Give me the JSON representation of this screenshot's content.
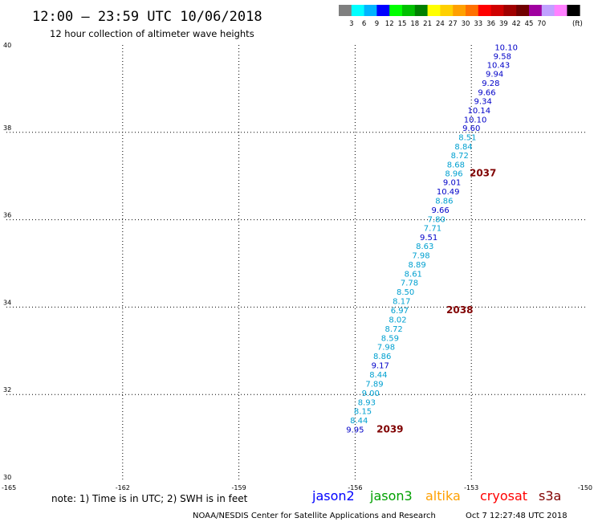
{
  "header": {
    "title": "12:00 – 23:59 UTC 10/06/2018",
    "subtitle": "12 hour collection of altimeter wave heights"
  },
  "colorbar": {
    "unit": "(ft)",
    "colors": [
      "#7f7f7f",
      "#00ffff",
      "#00b4ff",
      "#0000ff",
      "#00ff00",
      "#00c000",
      "#008000",
      "#ffff00",
      "#ffd000",
      "#ffa000",
      "#ff7000",
      "#ff0000",
      "#d00000",
      "#a00000",
      "#700000",
      "#a000a0",
      "#c0a0ff",
      "#ff80ff",
      "#000000"
    ],
    "labels": [
      "3",
      "6",
      "9",
      "12",
      "15",
      "18",
      "21",
      "24",
      "27",
      "30",
      "33",
      "36",
      "39",
      "42",
      "45",
      "70"
    ]
  },
  "chart_data": {
    "type": "scatter",
    "title": "12:00 – 23:59 UTC 10/06/2018",
    "subtitle": "12 hour collection of altimeter wave heights",
    "xlim": [
      -165,
      -150
    ],
    "ylim": [
      30,
      40
    ],
    "grid": true,
    "x_ticks": [
      "-165",
      "-162",
      "-159",
      "-156",
      "-153",
      "-150"
    ],
    "y_ticks": [
      "30",
      "32",
      "34",
      "36",
      "38",
      "40"
    ],
    "points": [
      {
        "lon": -152.1,
        "lat": 39.88,
        "label": "10.10",
        "color": "#0000c8"
      },
      {
        "lon": -152.2,
        "lat": 39.68,
        "label": "9.58",
        "color": "#0000c8"
      },
      {
        "lon": -152.3,
        "lat": 39.48,
        "label": "10.43",
        "color": "#0000c8"
      },
      {
        "lon": -152.4,
        "lat": 39.27,
        "label": "9.94",
        "color": "#0000c8"
      },
      {
        "lon": -152.5,
        "lat": 39.06,
        "label": "9.28",
        "color": "#0000c8"
      },
      {
        "lon": -152.6,
        "lat": 38.85,
        "label": "9.66",
        "color": "#0000c8"
      },
      {
        "lon": -152.7,
        "lat": 38.65,
        "label": "9.34",
        "color": "#0000c8"
      },
      {
        "lon": -152.8,
        "lat": 38.44,
        "label": "10.14",
        "color": "#0000c8"
      },
      {
        "lon": -152.9,
        "lat": 38.23,
        "label": "10.10",
        "color": "#0000c8"
      },
      {
        "lon": -153.0,
        "lat": 38.03,
        "label": "9.60",
        "color": "#0000c8"
      },
      {
        "lon": -153.1,
        "lat": 37.82,
        "label": "8.51",
        "color": "#00a0d0"
      },
      {
        "lon": -153.2,
        "lat": 37.61,
        "label": "8.84",
        "color": "#00a0d0"
      },
      {
        "lon": -153.3,
        "lat": 37.41,
        "label": "8.72",
        "color": "#00a0d0"
      },
      {
        "lon": -153.4,
        "lat": 37.2,
        "label": "8.68",
        "color": "#00a0d0"
      },
      {
        "lon": -153.45,
        "lat": 36.99,
        "label": "8.96",
        "color": "#00a0d0"
      },
      {
        "lon": -153.5,
        "lat": 36.79,
        "label": "9.01",
        "color": "#0000c8"
      },
      {
        "lon": -153.6,
        "lat": 36.58,
        "label": "10.49",
        "color": "#0000c8"
      },
      {
        "lon": -153.7,
        "lat": 36.37,
        "label": "8.86",
        "color": "#00a0d0"
      },
      {
        "lon": -153.8,
        "lat": 36.16,
        "label": "9.66",
        "color": "#0000c8"
      },
      {
        "lon": -153.9,
        "lat": 35.95,
        "label": "7.80",
        "color": "#00a0d0"
      },
      {
        "lon": -154.0,
        "lat": 35.74,
        "label": "7.71",
        "color": "#00a0d0"
      },
      {
        "lon": -154.1,
        "lat": 35.53,
        "label": "9.51",
        "color": "#0000c8"
      },
      {
        "lon": -154.2,
        "lat": 35.33,
        "label": "8.63",
        "color": "#00a0d0"
      },
      {
        "lon": -154.3,
        "lat": 35.12,
        "label": "7.98",
        "color": "#00a0d0"
      },
      {
        "lon": -154.4,
        "lat": 34.91,
        "label": "8.89",
        "color": "#00a0d0"
      },
      {
        "lon": -154.5,
        "lat": 34.7,
        "label": "8.61",
        "color": "#00a0d0"
      },
      {
        "lon": -154.6,
        "lat": 34.49,
        "label": "7.78",
        "color": "#00a0d0"
      },
      {
        "lon": -154.7,
        "lat": 34.28,
        "label": "8.50",
        "color": "#00a0d0"
      },
      {
        "lon": -154.8,
        "lat": 34.07,
        "label": "8.17",
        "color": "#00a0d0"
      },
      {
        "lon": -154.85,
        "lat": 33.86,
        "label": "6.97",
        "color": "#00a0d0"
      },
      {
        "lon": -154.9,
        "lat": 33.65,
        "label": "8.02",
        "color": "#00a0d0"
      },
      {
        "lon": -155.0,
        "lat": 33.44,
        "label": "8.72",
        "color": "#00a0d0"
      },
      {
        "lon": -155.1,
        "lat": 33.23,
        "label": "8.59",
        "color": "#00a0d0"
      },
      {
        "lon": -155.2,
        "lat": 33.02,
        "label": "7.98",
        "color": "#00a0d0"
      },
      {
        "lon": -155.3,
        "lat": 32.81,
        "label": "8.86",
        "color": "#00a0d0"
      },
      {
        "lon": -155.35,
        "lat": 32.6,
        "label": "9.17",
        "color": "#0000c8"
      },
      {
        "lon": -155.4,
        "lat": 32.39,
        "label": "8.44",
        "color": "#00a0d0"
      },
      {
        "lon": -155.5,
        "lat": 32.18,
        "label": "7.89",
        "color": "#00a0d0"
      },
      {
        "lon": -155.6,
        "lat": 31.97,
        "label": "9.00",
        "color": "#00a0d0"
      },
      {
        "lon": -155.7,
        "lat": 31.76,
        "label": "8.93",
        "color": "#00a0d0"
      },
      {
        "lon": -155.8,
        "lat": 31.55,
        "label": "8.15",
        "color": "#00a0d0"
      },
      {
        "lon": -155.9,
        "lat": 31.34,
        "label": "8.44",
        "color": "#00a0d0"
      },
      {
        "lon": -156.0,
        "lat": 31.13,
        "label": "9.95",
        "color": "#0000c8"
      }
    ],
    "pass_labels": [
      {
        "lon": -152.7,
        "lat": 36.99,
        "label": "2037",
        "color": "#800000"
      },
      {
        "lon": -153.3,
        "lat": 33.86,
        "label": "2038",
        "color": "#800000"
      },
      {
        "lon": -155.1,
        "lat": 31.13,
        "label": "2039",
        "color": "#800000"
      }
    ]
  },
  "footer": {
    "note": "note: 1) Time is in UTC; 2) SWH is in feet",
    "satellites": [
      {
        "name": "jason2",
        "color": "#0000ff"
      },
      {
        "name": "jason3",
        "color": "#00a000"
      },
      {
        "name": "altika",
        "color": "#ffa000"
      },
      {
        "name": "cryosat",
        "color": "#ff0000"
      },
      {
        "name": "s3a",
        "color": "#800000"
      }
    ],
    "credit_left": "NOAA/NESDIS Center for Satellite Applications and Research",
    "credit_right": "Oct  7 12:27:48 UTC 2018"
  }
}
